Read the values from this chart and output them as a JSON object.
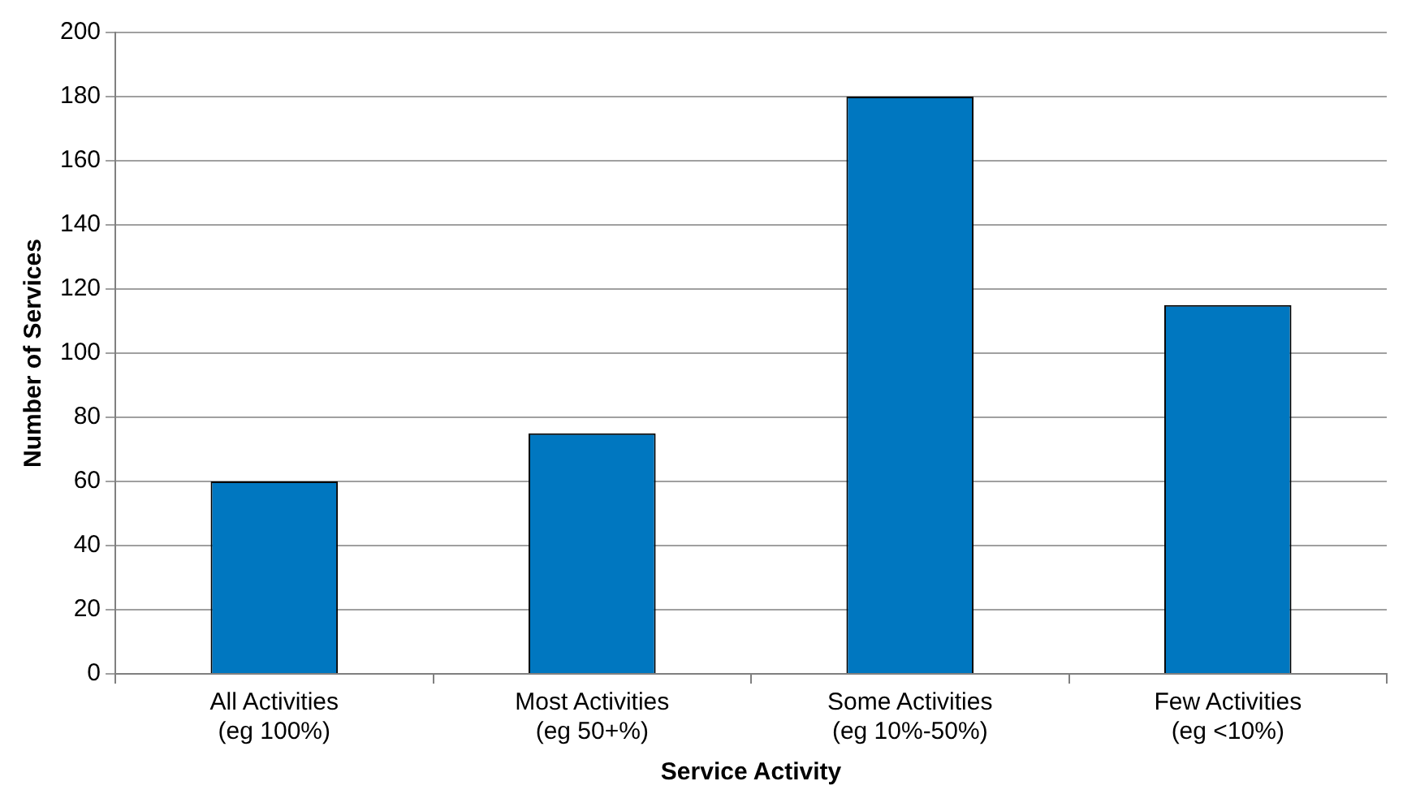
{
  "chart_data": {
    "type": "bar",
    "xlabel": "Service Activity",
    "ylabel": "Number of Services",
    "categories": [
      "All Activities\n(eg 100%)",
      "Most Activities\n(eg 50+%)",
      "Some Activities\n(eg 10%-50%)",
      "Few Activities\n(eg <10%)"
    ],
    "values": [
      60,
      75,
      180,
      115
    ],
    "color": "#0077c0",
    "ylim": [
      0,
      200
    ],
    "yticks": [
      0,
      20,
      40,
      60,
      80,
      100,
      120,
      140,
      160,
      180,
      200
    ],
    "grid": "y",
    "legend": false
  }
}
